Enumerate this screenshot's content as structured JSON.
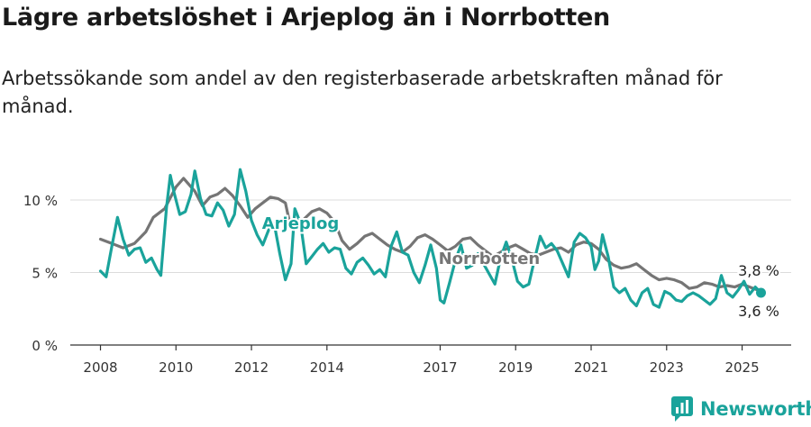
{
  "header": {
    "title": "Lägre arbetslöshet i Arjeplog än i Norrbotten",
    "subtitle": "Arbetssökande som andel av den registerbaserade arbetskraften månad för månad."
  },
  "brand": {
    "name": "Newsworthy",
    "icon": "newsworthy-logo-icon",
    "color": "#1aa39b"
  },
  "chart_data": {
    "type": "line",
    "xlim": [
      2007.2,
      2026.3
    ],
    "ylim": [
      0,
      12.5
    ],
    "grid": true,
    "x_ticks": [
      {
        "value": 2008,
        "label": "2008"
      },
      {
        "value": 2010,
        "label": "2010"
      },
      {
        "value": 2012,
        "label": "2012"
      },
      {
        "value": 2014,
        "label": "2014"
      },
      {
        "value": 2017,
        "label": "2017"
      },
      {
        "value": 2019,
        "label": "2019"
      },
      {
        "value": 2021,
        "label": "2021"
      },
      {
        "value": 2023,
        "label": "2023"
      },
      {
        "value": 2025,
        "label": "2025"
      }
    ],
    "y_ticks": [
      {
        "value": 0,
        "label": "0 %"
      },
      {
        "value": 5,
        "label": "5 %"
      },
      {
        "value": 10,
        "label": "10 %"
      }
    ],
    "series": [
      {
        "name": "Norrbotten",
        "color": "#757575",
        "label_at": [
          2018.3,
          5.6
        ],
        "last_label": "3,8 %",
        "points": [
          [
            2008.0,
            7.3
          ],
          [
            2008.3,
            7.0
          ],
          [
            2008.6,
            6.7
          ],
          [
            2008.9,
            7.0
          ],
          [
            2009.2,
            7.8
          ],
          [
            2009.4,
            8.8
          ],
          [
            2009.7,
            9.4
          ],
          [
            2010.0,
            10.9
          ],
          [
            2010.2,
            11.5
          ],
          [
            2010.5,
            10.6
          ],
          [
            2010.7,
            9.6
          ],
          [
            2010.9,
            10.2
          ],
          [
            2011.1,
            10.4
          ],
          [
            2011.3,
            10.8
          ],
          [
            2011.5,
            10.3
          ],
          [
            2011.7,
            9.6
          ],
          [
            2011.9,
            8.8
          ],
          [
            2012.1,
            9.4
          ],
          [
            2012.3,
            9.8
          ],
          [
            2012.5,
            10.2
          ],
          [
            2012.7,
            10.1
          ],
          [
            2012.9,
            9.8
          ],
          [
            2013.0,
            8.6
          ],
          [
            2013.2,
            8.2
          ],
          [
            2013.4,
            8.7
          ],
          [
            2013.6,
            9.2
          ],
          [
            2013.8,
            9.4
          ],
          [
            2014.0,
            9.1
          ],
          [
            2014.2,
            8.5
          ],
          [
            2014.4,
            7.2
          ],
          [
            2014.6,
            6.6
          ],
          [
            2014.8,
            7.0
          ],
          [
            2015.0,
            7.5
          ],
          [
            2015.2,
            7.7
          ],
          [
            2015.4,
            7.3
          ],
          [
            2015.6,
            6.9
          ],
          [
            2015.8,
            6.6
          ],
          [
            2016.0,
            6.4
          ],
          [
            2016.2,
            6.8
          ],
          [
            2016.4,
            7.4
          ],
          [
            2016.6,
            7.6
          ],
          [
            2016.8,
            7.3
          ],
          [
            2017.0,
            6.9
          ],
          [
            2017.2,
            6.5
          ],
          [
            2017.4,
            6.8
          ],
          [
            2017.6,
            7.3
          ],
          [
            2017.8,
            7.4
          ],
          [
            2018.0,
            6.9
          ],
          [
            2018.2,
            6.5
          ],
          [
            2018.4,
            6.1
          ],
          [
            2018.6,
            6.4
          ],
          [
            2018.8,
            6.7
          ],
          [
            2019.0,
            6.9
          ],
          [
            2019.2,
            6.6
          ],
          [
            2019.4,
            6.3
          ],
          [
            2019.6,
            6.2
          ],
          [
            2019.8,
            6.4
          ],
          [
            2020.0,
            6.6
          ],
          [
            2020.2,
            6.7
          ],
          [
            2020.4,
            6.4
          ],
          [
            2020.6,
            6.9
          ],
          [
            2020.8,
            7.1
          ],
          [
            2021.0,
            7.0
          ],
          [
            2021.2,
            6.6
          ],
          [
            2021.4,
            5.9
          ],
          [
            2021.6,
            5.5
          ],
          [
            2021.8,
            5.3
          ],
          [
            2022.0,
            5.4
          ],
          [
            2022.2,
            5.6
          ],
          [
            2022.4,
            5.2
          ],
          [
            2022.6,
            4.8
          ],
          [
            2022.8,
            4.5
          ],
          [
            2023.0,
            4.6
          ],
          [
            2023.2,
            4.5
          ],
          [
            2023.4,
            4.3
          ],
          [
            2023.6,
            3.9
          ],
          [
            2023.8,
            4.0
          ],
          [
            2024.0,
            4.3
          ],
          [
            2024.2,
            4.2
          ],
          [
            2024.4,
            4.0
          ],
          [
            2024.6,
            4.1
          ],
          [
            2024.8,
            4.0
          ],
          [
            2025.0,
            4.2
          ],
          [
            2025.2,
            4.0
          ],
          [
            2025.4,
            3.8
          ]
        ]
      },
      {
        "name": "Arjeplog",
        "color": "#1aa39b",
        "label_at": [
          2013.3,
          8.0
        ],
        "last_label": "3,6 %",
        "points": [
          [
            2008.0,
            5.1
          ],
          [
            2008.15,
            4.7
          ],
          [
            2008.3,
            6.8
          ],
          [
            2008.45,
            8.8
          ],
          [
            2008.6,
            7.3
          ],
          [
            2008.75,
            6.2
          ],
          [
            2008.9,
            6.6
          ],
          [
            2009.05,
            6.7
          ],
          [
            2009.2,
            5.7
          ],
          [
            2009.35,
            6.0
          ],
          [
            2009.5,
            5.2
          ],
          [
            2009.6,
            4.8
          ],
          [
            2009.75,
            9.5
          ],
          [
            2009.85,
            11.7
          ],
          [
            2009.95,
            10.5
          ],
          [
            2010.1,
            9.0
          ],
          [
            2010.25,
            9.2
          ],
          [
            2010.4,
            10.4
          ],
          [
            2010.5,
            12.0
          ],
          [
            2010.65,
            10.1
          ],
          [
            2010.8,
            9.0
          ],
          [
            2010.95,
            8.9
          ],
          [
            2011.1,
            9.8
          ],
          [
            2011.25,
            9.3
          ],
          [
            2011.4,
            8.2
          ],
          [
            2011.55,
            9.0
          ],
          [
            2011.7,
            12.1
          ],
          [
            2011.85,
            10.6
          ],
          [
            2012.0,
            8.6
          ],
          [
            2012.15,
            7.6
          ],
          [
            2012.3,
            6.9
          ],
          [
            2012.45,
            7.9
          ],
          [
            2012.6,
            8.4
          ],
          [
            2012.75,
            6.3
          ],
          [
            2012.9,
            4.5
          ],
          [
            2013.05,
            5.6
          ],
          [
            2013.15,
            9.4
          ],
          [
            2013.3,
            8.4
          ],
          [
            2013.45,
            5.6
          ],
          [
            2013.6,
            6.1
          ],
          [
            2013.75,
            6.6
          ],
          [
            2013.9,
            7.0
          ],
          [
            2014.05,
            6.4
          ],
          [
            2014.2,
            6.7
          ],
          [
            2014.35,
            6.6
          ],
          [
            2014.5,
            5.3
          ],
          [
            2014.65,
            4.9
          ],
          [
            2014.8,
            5.7
          ],
          [
            2014.95,
            6.0
          ],
          [
            2015.1,
            5.5
          ],
          [
            2015.25,
            4.9
          ],
          [
            2015.4,
            5.2
          ],
          [
            2015.55,
            4.7
          ],
          [
            2015.7,
            6.8
          ],
          [
            2015.85,
            7.8
          ],
          [
            2016.0,
            6.4
          ],
          [
            2016.15,
            6.2
          ],
          [
            2016.3,
            5.0
          ],
          [
            2016.45,
            4.3
          ],
          [
            2016.6,
            5.5
          ],
          [
            2016.75,
            6.9
          ],
          [
            2016.9,
            5.3
          ],
          [
            2017.0,
            3.1
          ],
          [
            2017.1,
            2.9
          ],
          [
            2017.25,
            4.3
          ],
          [
            2017.4,
            5.8
          ],
          [
            2017.55,
            6.9
          ],
          [
            2017.7,
            5.3
          ],
          [
            2017.85,
            5.5
          ],
          [
            2018.0,
            6.3
          ],
          [
            2018.15,
            5.6
          ],
          [
            2018.3,
            4.9
          ],
          [
            2018.45,
            4.2
          ],
          [
            2018.6,
            6.0
          ],
          [
            2018.75,
            7.1
          ],
          [
            2018.9,
            5.9
          ],
          [
            2019.05,
            4.4
          ],
          [
            2019.2,
            4.0
          ],
          [
            2019.35,
            4.2
          ],
          [
            2019.5,
            5.9
          ],
          [
            2019.65,
            7.5
          ],
          [
            2019.8,
            6.7
          ],
          [
            2019.95,
            7.0
          ],
          [
            2020.1,
            6.5
          ],
          [
            2020.25,
            5.6
          ],
          [
            2020.4,
            4.7
          ],
          [
            2020.55,
            7.1
          ],
          [
            2020.7,
            7.7
          ],
          [
            2020.85,
            7.4
          ],
          [
            2021.0,
            6.8
          ],
          [
            2021.1,
            5.2
          ],
          [
            2021.2,
            5.8
          ],
          [
            2021.3,
            7.6
          ],
          [
            2021.45,
            6.1
          ],
          [
            2021.6,
            4.0
          ],
          [
            2021.75,
            3.6
          ],
          [
            2021.9,
            3.9
          ],
          [
            2022.05,
            3.1
          ],
          [
            2022.2,
            2.7
          ],
          [
            2022.35,
            3.6
          ],
          [
            2022.5,
            3.9
          ],
          [
            2022.65,
            2.8
          ],
          [
            2022.8,
            2.6
          ],
          [
            2022.95,
            3.7
          ],
          [
            2023.1,
            3.5
          ],
          [
            2023.25,
            3.1
          ],
          [
            2023.4,
            3.0
          ],
          [
            2023.55,
            3.4
          ],
          [
            2023.7,
            3.6
          ],
          [
            2023.85,
            3.4
          ],
          [
            2024.0,
            3.1
          ],
          [
            2024.15,
            2.8
          ],
          [
            2024.3,
            3.2
          ],
          [
            2024.45,
            4.8
          ],
          [
            2024.6,
            3.6
          ],
          [
            2024.75,
            3.3
          ],
          [
            2024.9,
            3.8
          ],
          [
            2025.05,
            4.4
          ],
          [
            2025.2,
            3.5
          ],
          [
            2025.35,
            4.0
          ],
          [
            2025.5,
            3.6
          ]
        ]
      }
    ]
  }
}
